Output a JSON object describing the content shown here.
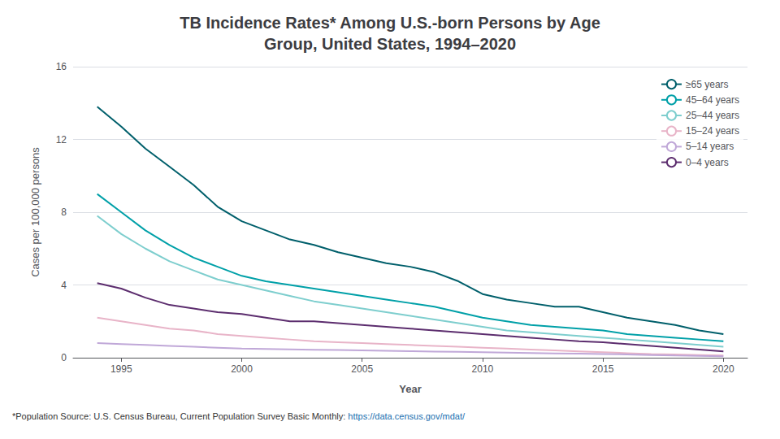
{
  "chart_data": {
    "type": "line",
    "title": "TB Incidence Rates* Among U.S.-born Persons by Age\nGroup, United States, 1994–2020",
    "x_label": "Year",
    "y_label": "Cases per 100,000 persons",
    "annotations": [
      "*Population Source: U.S. Census Bureau, Current Population Survey Basic Monthly:",
      "https://data.census.gov/mdat/"
    ],
    "x": [
      1994,
      1995,
      1996,
      1997,
      1998,
      1999,
      2000,
      2001,
      2002,
      2003,
      2004,
      2005,
      2006,
      2007,
      2008,
      2009,
      2010,
      2011,
      2012,
      2013,
      2014,
      2015,
      2016,
      2017,
      2018,
      2019,
      2020
    ],
    "series": [
      {
        "name": "≥65 years",
        "color": "#005f6b",
        "values": [
          13.8,
          12.7,
          11.5,
          10.5,
          9.5,
          8.3,
          7.5,
          7.0,
          6.5,
          6.2,
          5.8,
          5.5,
          5.2,
          5.0,
          4.7,
          4.2,
          3.5,
          3.2,
          3.0,
          2.8,
          2.8,
          2.5,
          2.2,
          2.0,
          1.8,
          1.5,
          1.3
        ]
      },
      {
        "name": "45–64 years",
        "color": "#00a0a8",
        "values": [
          9.0,
          8.0,
          7.0,
          6.2,
          5.5,
          5.0,
          4.5,
          4.2,
          4.0,
          3.8,
          3.6,
          3.4,
          3.2,
          3.0,
          2.8,
          2.5,
          2.2,
          2.0,
          1.8,
          1.7,
          1.6,
          1.5,
          1.3,
          1.2,
          1.1,
          1.0,
          0.9
        ]
      },
      {
        "name": "25–44 years",
        "color": "#7ecece",
        "values": [
          7.8,
          6.8,
          6.0,
          5.3,
          4.8,
          4.3,
          4.0,
          3.7,
          3.4,
          3.1,
          2.9,
          2.7,
          2.5,
          2.3,
          2.1,
          1.9,
          1.7,
          1.5,
          1.4,
          1.3,
          1.2,
          1.1,
          1.0,
          0.9,
          0.8,
          0.7,
          0.6
        ]
      },
      {
        "name": "15–24 years",
        "color": "#e8b4c8",
        "values": [
          2.2,
          2.0,
          1.8,
          1.6,
          1.5,
          1.3,
          1.2,
          1.1,
          1.0,
          0.9,
          0.85,
          0.8,
          0.75,
          0.7,
          0.65,
          0.6,
          0.55,
          0.5,
          0.45,
          0.4,
          0.35,
          0.3,
          0.25,
          0.2,
          0.18,
          0.15,
          0.12
        ]
      },
      {
        "name": "5–14 years",
        "color": "#c0a8d8",
        "values": [
          0.8,
          0.75,
          0.7,
          0.65,
          0.6,
          0.55,
          0.5,
          0.48,
          0.46,
          0.44,
          0.42,
          0.4,
          0.38,
          0.36,
          0.34,
          0.32,
          0.3,
          0.28,
          0.26,
          0.24,
          0.22,
          0.2,
          0.18,
          0.15,
          0.12,
          0.1,
          0.08
        ]
      },
      {
        "name": "0–4 years",
        "color": "#5c2d6e",
        "values": [
          4.1,
          3.8,
          3.3,
          2.9,
          2.7,
          2.5,
          2.4,
          2.2,
          2.0,
          2.0,
          1.9,
          1.8,
          1.7,
          1.6,
          1.5,
          1.4,
          1.3,
          1.2,
          1.1,
          1.0,
          0.9,
          0.85,
          0.75,
          0.65,
          0.55,
          0.45,
          0.35
        ]
      }
    ],
    "xlim": [
      1993,
      2021
    ],
    "xticks": [
      1995,
      2000,
      2005,
      2010,
      2015,
      2020
    ],
    "ylim": [
      0,
      16
    ],
    "yticks": [
      0,
      4,
      8,
      12,
      16
    ],
    "grid": true,
    "legend": "upper right"
  }
}
